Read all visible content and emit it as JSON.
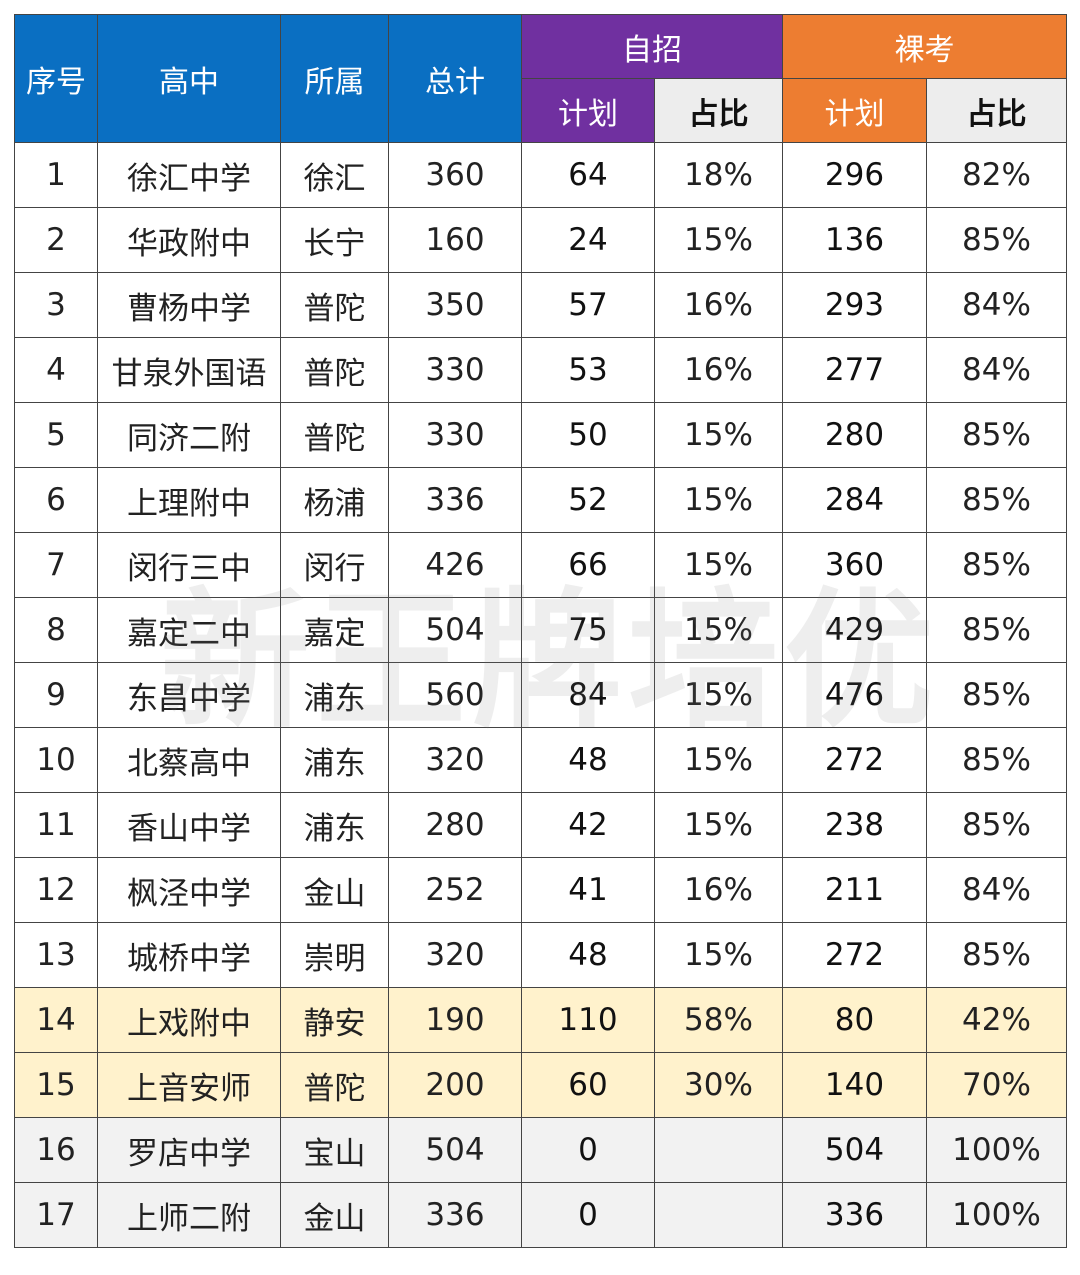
{
  "header": {
    "seq": "序号",
    "school": "高中",
    "district": "所属",
    "total": "总计",
    "self_group": "自招",
    "exam_group": "裸考",
    "plan": "计划",
    "ratio": "占比"
  },
  "colors": {
    "blue": "#0a6fc2",
    "purple": "#7030a0",
    "orange": "#ed7d31",
    "highlight_yellow": "#fff2cc",
    "highlight_gray": "#f2f2f2"
  },
  "watermark": "新王牌培优",
  "rows": [
    {
      "seq": "1",
      "school": "徐汇中学",
      "district": "徐汇",
      "total": "360",
      "self_plan": "64",
      "self_ratio": "18%",
      "exam_plan": "296",
      "exam_ratio": "82%"
    },
    {
      "seq": "2",
      "school": "华政附中",
      "district": "长宁",
      "total": "160",
      "self_plan": "24",
      "self_ratio": "15%",
      "exam_plan": "136",
      "exam_ratio": "85%"
    },
    {
      "seq": "3",
      "school": "曹杨中学",
      "district": "普陀",
      "total": "350",
      "self_plan": "57",
      "self_ratio": "16%",
      "exam_plan": "293",
      "exam_ratio": "84%"
    },
    {
      "seq": "4",
      "school": "甘泉外国语",
      "district": "普陀",
      "total": "330",
      "self_plan": "53",
      "self_ratio": "16%",
      "exam_plan": "277",
      "exam_ratio": "84%"
    },
    {
      "seq": "5",
      "school": "同济二附",
      "district": "普陀",
      "total": "330",
      "self_plan": "50",
      "self_ratio": "15%",
      "exam_plan": "280",
      "exam_ratio": "85%"
    },
    {
      "seq": "6",
      "school": "上理附中",
      "district": "杨浦",
      "total": "336",
      "self_plan": "52",
      "self_ratio": "15%",
      "exam_plan": "284",
      "exam_ratio": "85%"
    },
    {
      "seq": "7",
      "school": "闵行三中",
      "district": "闵行",
      "total": "426",
      "self_plan": "66",
      "self_ratio": "15%",
      "exam_plan": "360",
      "exam_ratio": "85%"
    },
    {
      "seq": "8",
      "school": "嘉定二中",
      "district": "嘉定",
      "total": "504",
      "self_plan": "75",
      "self_ratio": "15%",
      "exam_plan": "429",
      "exam_ratio": "85%"
    },
    {
      "seq": "9",
      "school": "东昌中学",
      "district": "浦东",
      "total": "560",
      "self_plan": "84",
      "self_ratio": "15%",
      "exam_plan": "476",
      "exam_ratio": "85%"
    },
    {
      "seq": "10",
      "school": "北蔡高中",
      "district": "浦东",
      "total": "320",
      "self_plan": "48",
      "self_ratio": "15%",
      "exam_plan": "272",
      "exam_ratio": "85%"
    },
    {
      "seq": "11",
      "school": "香山中学",
      "district": "浦东",
      "total": "280",
      "self_plan": "42",
      "self_ratio": "15%",
      "exam_plan": "238",
      "exam_ratio": "85%"
    },
    {
      "seq": "12",
      "school": "枫泾中学",
      "district": "金山",
      "total": "252",
      "self_plan": "41",
      "self_ratio": "16%",
      "exam_plan": "211",
      "exam_ratio": "84%"
    },
    {
      "seq": "13",
      "school": "城桥中学",
      "district": "崇明",
      "total": "320",
      "self_plan": "48",
      "self_ratio": "15%",
      "exam_plan": "272",
      "exam_ratio": "85%"
    },
    {
      "seq": "14",
      "school": "上戏附中",
      "district": "静安",
      "total": "190",
      "self_plan": "110",
      "self_ratio": "58%",
      "exam_plan": "80",
      "exam_ratio": "42%"
    },
    {
      "seq": "15",
      "school": "上音安师",
      "district": "普陀",
      "total": "200",
      "self_plan": "60",
      "self_ratio": "30%",
      "exam_plan": "140",
      "exam_ratio": "70%"
    },
    {
      "seq": "16",
      "school": "罗店中学",
      "district": "宝山",
      "total": "504",
      "self_plan": "0",
      "self_ratio": "",
      "exam_plan": "504",
      "exam_ratio": "100%"
    },
    {
      "seq": "17",
      "school": "上师二附",
      "district": "金山",
      "total": "336",
      "self_plan": "0",
      "self_ratio": "",
      "exam_plan": "336",
      "exam_ratio": "100%"
    }
  ]
}
